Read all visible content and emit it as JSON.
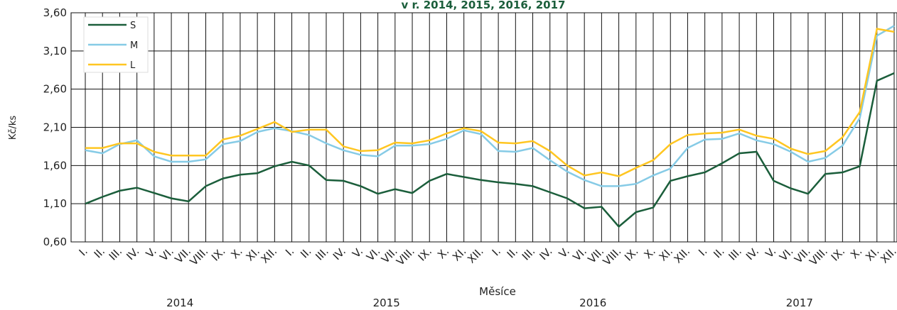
{
  "chart_data": {
    "type": "line",
    "title": "v r. 2014, 2015, 2016, 2017",
    "y_label": "Kč/ks",
    "x_label": "Měsíce",
    "categories": [
      "I.",
      "II.",
      "III.",
      "IV.",
      "V.",
      "VI.",
      "VII.",
      "VIII.",
      "IX.",
      "X.",
      "XI.",
      "XII.",
      "I.",
      "II.",
      "III.",
      "IV.",
      "V.",
      "VI.",
      "VII.",
      "VIII.",
      "IX.",
      "X.",
      "XI.",
      "XII.",
      "I.",
      "II.",
      "III.",
      "IV.",
      "V.",
      "VI.",
      "VII.",
      "VIII.",
      "IX.",
      "X.",
      "XI.",
      "XII.",
      "I.",
      "II.",
      "III.",
      "IV.",
      "V.",
      "VI.",
      "VII.",
      "VIII.",
      "IX.",
      "X.",
      "XI.",
      "XII."
    ],
    "groups": [
      "2014",
      "2015",
      "2016",
      "2017"
    ],
    "series": [
      {
        "name": "S",
        "color": "#1b5e3b",
        "values": [
          1.1,
          1.19,
          1.27,
          1.31,
          1.24,
          1.17,
          1.13,
          1.33,
          1.43,
          1.48,
          1.5,
          1.59,
          1.65,
          1.6,
          1.41,
          1.4,
          1.33,
          1.23,
          1.29,
          1.24,
          1.4,
          1.49,
          1.45,
          1.41,
          1.38,
          1.36,
          1.33,
          1.25,
          1.17,
          1.04,
          1.06,
          0.8,
          0.99,
          1.05,
          1.4,
          1.46,
          1.51,
          1.63,
          1.76,
          1.78,
          1.4,
          1.3,
          1.23,
          1.49,
          1.51,
          1.59,
          2.71,
          2.81
        ]
      },
      {
        "name": "M",
        "color": "#86cbe6",
        "values": [
          1.8,
          1.76,
          1.88,
          1.93,
          1.72,
          1.65,
          1.65,
          1.68,
          1.88,
          1.92,
          2.04,
          2.09,
          2.05,
          2.0,
          1.89,
          1.8,
          1.74,
          1.72,
          1.86,
          1.86,
          1.88,
          1.95,
          2.06,
          2.01,
          1.79,
          1.78,
          1.83,
          1.67,
          1.52,
          1.41,
          1.33,
          1.33,
          1.36,
          1.47,
          1.56,
          1.83,
          1.94,
          1.95,
          2.02,
          1.93,
          1.88,
          1.78,
          1.65,
          1.7,
          1.86,
          2.22,
          3.3,
          3.43
        ]
      },
      {
        "name": "L",
        "color": "#ffc621",
        "values": [
          1.83,
          1.83,
          1.89,
          1.89,
          1.78,
          1.73,
          1.73,
          1.73,
          1.94,
          1.99,
          2.08,
          2.17,
          2.04,
          2.07,
          2.07,
          1.85,
          1.79,
          1.8,
          1.9,
          1.89,
          1.93,
          2.02,
          2.09,
          2.05,
          1.9,
          1.89,
          1.92,
          1.79,
          1.6,
          1.47,
          1.51,
          1.46,
          1.57,
          1.67,
          1.88,
          2.0,
          2.02,
          2.03,
          2.07,
          1.99,
          1.95,
          1.82,
          1.75,
          1.79,
          1.97,
          2.3,
          3.39,
          3.35
        ]
      }
    ],
    "ylim": [
      0.6,
      3.6
    ],
    "yticks": [
      {
        "value": 0.6,
        "label": "0,60"
      },
      {
        "value": 1.1,
        "label": "1,10"
      },
      {
        "value": 1.6,
        "label": "1,60"
      },
      {
        "value": 2.1,
        "label": "2,10"
      },
      {
        "value": 2.6,
        "label": "2,60"
      },
      {
        "value": 3.1,
        "label": "3,10"
      },
      {
        "value": 3.6,
        "label": "3,60"
      }
    ],
    "grid": true,
    "legend": "top-left"
  }
}
